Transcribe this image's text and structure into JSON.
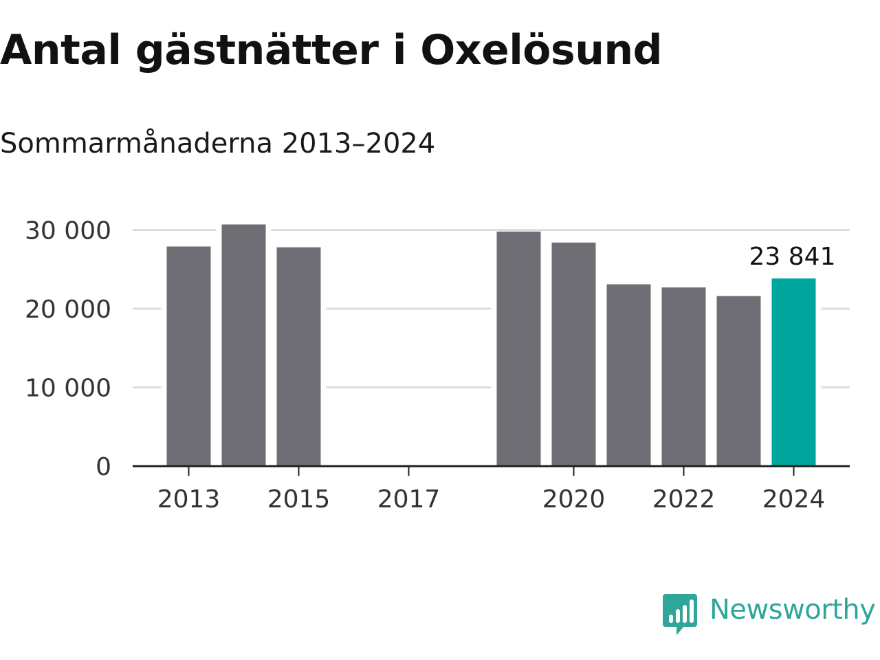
{
  "title": "Antal gästnätter i Oxelösund",
  "subtitle": "Sommarmånaderna 2013–2024",
  "chart_data": {
    "type": "bar",
    "categories": [
      "2013",
      "2014",
      "2015",
      "2016",
      "2017",
      "2018",
      "2019",
      "2020",
      "2021",
      "2022",
      "2023",
      "2024"
    ],
    "values": [
      27900,
      30700,
      27800,
      null,
      null,
      null,
      29800,
      28400,
      23100,
      22700,
      21600,
      23841
    ],
    "x_tick_labels": [
      "2013",
      "2015",
      "2017",
      "2020",
      "2022",
      "2024"
    ],
    "y_ticks": [
      0,
      10000,
      20000,
      30000
    ],
    "y_tick_labels": [
      "0",
      "10 000",
      "20 000",
      "30 000"
    ],
    "ylim": [
      0,
      30000
    ],
    "xlabel": "",
    "ylabel": "",
    "highlight": {
      "category": "2024",
      "label": "23 841"
    },
    "grid": true,
    "legend": "none",
    "colors": {
      "bar": "#6f6e74",
      "highlight": "#00a69c",
      "grid": "#dcdcdc",
      "axis": "#222222"
    }
  },
  "logo": {
    "text": "Newsworthy",
    "icon": "bar-chart-speech-bubble-icon",
    "color": "#2fa69a"
  }
}
